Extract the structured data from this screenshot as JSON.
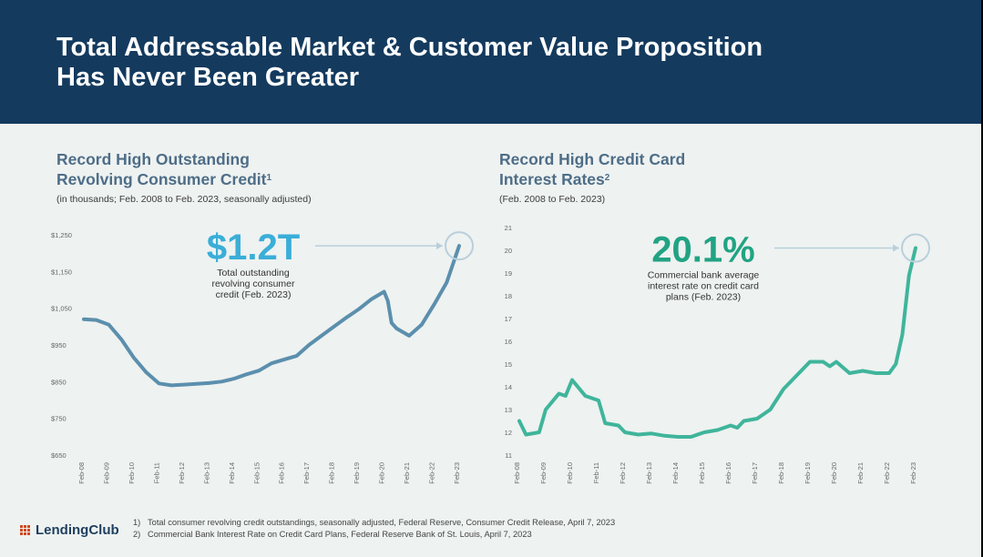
{
  "header": {
    "title_line1": "Total Addressable Market & Customer Value Proposition",
    "title_line2": "Has Never Been Greater"
  },
  "left_panel": {
    "title_line1": "Record High Outstanding",
    "title_line2": "Revolving Consumer Credit",
    "title_sup": "1",
    "subtitle": "(in thousands; Feb. 2008 to Feb. 2023, seasonally adjusted)"
  },
  "right_panel": {
    "title_line1": "Record High Credit Card",
    "title_line2": "Interest Rates",
    "title_sup": "2",
    "subtitle": "(Feb. 2008 to Feb. 2023)"
  },
  "footer": {
    "logo_text": "LendingClub",
    "footnote1_num": "1)",
    "footnote1": "Total consumer revolving credit outstandings, seasonally adjusted, Federal Reserve, Consumer Credit Release, April 7, 2023",
    "footnote2_num": "2)",
    "footnote2": "Commercial Bank Interest Rate on Credit Card Plans, Federal Reserve Bank of St. Louis, April 7, 2023"
  },
  "colors": {
    "header_bg": "#143a5e",
    "left_line": "#5b8fad",
    "left_callout": "#3aaed8",
    "right_line": "#3fb59b",
    "right_callout": "#21a383",
    "logo_accent": "#d1481f"
  },
  "chart_data": [
    {
      "type": "line",
      "ylim": [
        650,
        1250
      ],
      "y_ticks": [
        "$650",
        "$750",
        "$850",
        "$950",
        "$1,050",
        "$1,150",
        "$1,250"
      ],
      "x_ticks": [
        "Feb-08",
        "Feb-09",
        "Feb-10",
        "Feb-11",
        "Feb-12",
        "Feb-13",
        "Feb-14",
        "Feb-15",
        "Feb-16",
        "Feb-17",
        "Feb-18",
        "Feb-19",
        "Feb-20",
        "Feb-21",
        "Feb-22",
        "Feb-23"
      ],
      "x": [
        2008.0,
        2008.5,
        2009.0,
        2009.5,
        2010.0,
        2010.5,
        2011.0,
        2011.5,
        2012.0,
        2012.5,
        2013.0,
        2013.5,
        2014.0,
        2014.5,
        2015.0,
        2015.5,
        2016.0,
        2016.5,
        2017.0,
        2017.5,
        2018.0,
        2018.5,
        2019.0,
        2019.5,
        2020.0,
        2020.15,
        2020.3,
        2020.5,
        2021.0,
        2021.5,
        2022.0,
        2022.5,
        2023.0
      ],
      "values": [
        1020,
        1018,
        1005,
        965,
        915,
        875,
        845,
        840,
        842,
        844,
        846,
        850,
        858,
        870,
        880,
        900,
        910,
        920,
        950,
        975,
        1000,
        1025,
        1048,
        1075,
        1095,
        1070,
        1010,
        995,
        975,
        1005,
        1060,
        1120,
        1220
      ],
      "callout_value": "$1.2T",
      "callout_text_line1": "Total outstanding",
      "callout_text_line2": "revolving consumer",
      "callout_text_line3": "credit (Feb. 2023)"
    },
    {
      "type": "line",
      "ylim": [
        11,
        21
      ],
      "y_ticks": [
        "11",
        "12",
        "13",
        "14",
        "15",
        "16",
        "17",
        "18",
        "19",
        "20",
        "21"
      ],
      "x_ticks": [
        "Feb-08",
        "Feb-09",
        "Feb-10",
        "Feb-11",
        "Feb-12",
        "Feb-13",
        "Feb-14",
        "Feb-15",
        "Feb-16",
        "Feb-17",
        "Feb-18",
        "Feb-19",
        "Feb-20",
        "Feb-21",
        "Feb-22",
        "Feb-23"
      ],
      "x": [
        2008.0,
        2008.25,
        2008.75,
        2009.0,
        2009.5,
        2009.75,
        2010.0,
        2010.5,
        2011.0,
        2011.25,
        2011.75,
        2012.0,
        2012.5,
        2013.0,
        2013.5,
        2014.0,
        2014.5,
        2015.0,
        2015.5,
        2016.0,
        2016.25,
        2016.5,
        2017.0,
        2017.5,
        2018.0,
        2018.5,
        2019.0,
        2019.5,
        2019.75,
        2020.0,
        2020.5,
        2021.0,
        2021.5,
        2022.0,
        2022.25,
        2022.5,
        2022.75,
        2023.0
      ],
      "values": [
        12.5,
        11.9,
        12.0,
        13.0,
        13.7,
        13.6,
        14.3,
        13.6,
        13.4,
        12.4,
        12.3,
        12.0,
        11.9,
        11.95,
        11.85,
        11.8,
        11.8,
        12.0,
        12.1,
        12.3,
        12.2,
        12.5,
        12.6,
        13.0,
        13.9,
        14.5,
        15.1,
        15.1,
        14.9,
        15.1,
        14.6,
        14.7,
        14.6,
        14.6,
        15.0,
        16.3,
        18.9,
        20.1
      ],
      "callout_value": "20.1%",
      "callout_text_line1": "Commercial bank average",
      "callout_text_line2": "interest rate on credit card",
      "callout_text_line3": "plans (Feb. 2023)"
    }
  ]
}
